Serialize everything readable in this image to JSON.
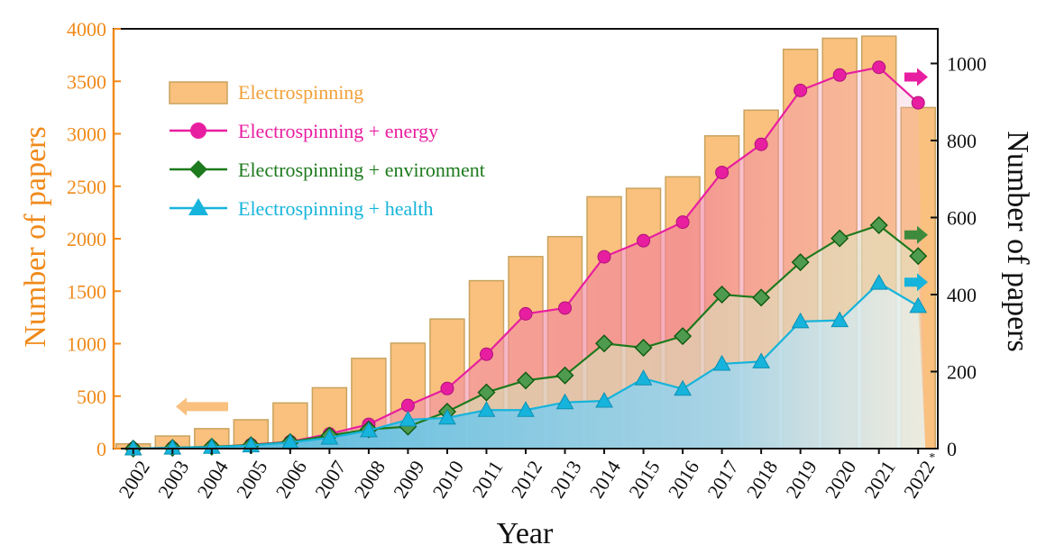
{
  "chart_data": {
    "type": "bar+line",
    "categories": [
      "2002",
      "2003",
      "2004",
      "2005",
      "2006",
      "2007",
      "2008",
      "2009",
      "2010",
      "2011",
      "2012",
      "2013",
      "2014",
      "2015",
      "2016",
      "2017",
      "2018",
      "2019",
      "2020",
      "2021",
      "2022"
    ],
    "last_category_note": "*",
    "xlabel": "Year",
    "ylabel_left": "Number of papers",
    "ylabel_right": "Number of papers",
    "ylim_left": [
      0,
      4000
    ],
    "ylim_right": [
      0,
      1090
    ],
    "yticks_left": [
      0,
      500,
      1000,
      1500,
      2000,
      2500,
      3000,
      3500,
      4000
    ],
    "yticks_right": [
      0,
      200,
      400,
      600,
      800,
      1000
    ],
    "bars": {
      "name": "Electrospinning",
      "axis": "left",
      "values": [
        45,
        120,
        190,
        275,
        435,
        580,
        860,
        1005,
        1235,
        1600,
        1830,
        2020,
        2400,
        2480,
        2590,
        2980,
        3225,
        3805,
        3910,
        3930,
        3250
      ],
      "color": "#f9c07e",
      "edge_color": "#c9a35f"
    },
    "series": [
      {
        "name": "Electrospinning + energy",
        "axis": "right",
        "marker": "circle",
        "color": "#e81ea0",
        "values": [
          0,
          2,
          4,
          10,
          18,
          38,
          63,
          112,
          156,
          245,
          350,
          365,
          498,
          540,
          588,
          717,
          790,
          930,
          970,
          990,
          898
        ]
      },
      {
        "name": "Electrospinning + environment",
        "axis": "right",
        "marker": "diamond",
        "color": "#1d7a1d",
        "values": [
          0,
          2,
          5,
          9,
          17,
          34,
          50,
          57,
          96,
          146,
          177,
          190,
          273,
          262,
          292,
          400,
          392,
          484,
          546,
          580,
          500
        ]
      },
      {
        "name": "Electrospinning + health",
        "axis": "right",
        "marker": "triangle",
        "color": "#16b4dc",
        "values": [
          0,
          2,
          4,
          8,
          16,
          28,
          47,
          75,
          80,
          100,
          100,
          120,
          124,
          182,
          155,
          220,
          226,
          330,
          333,
          430,
          370
        ]
      }
    ],
    "axis_arrows": [
      {
        "direction": "left",
        "color": "#f9c07e",
        "axis": "left"
      },
      {
        "direction": "right",
        "color": "#e81ea0",
        "axis": "right"
      },
      {
        "direction": "right",
        "color": "#3d8a3d",
        "axis": "right"
      },
      {
        "direction": "right",
        "color": "#16b4dc",
        "axis": "right"
      }
    ],
    "legend": {
      "placement": "top-left"
    },
    "grid": false
  }
}
